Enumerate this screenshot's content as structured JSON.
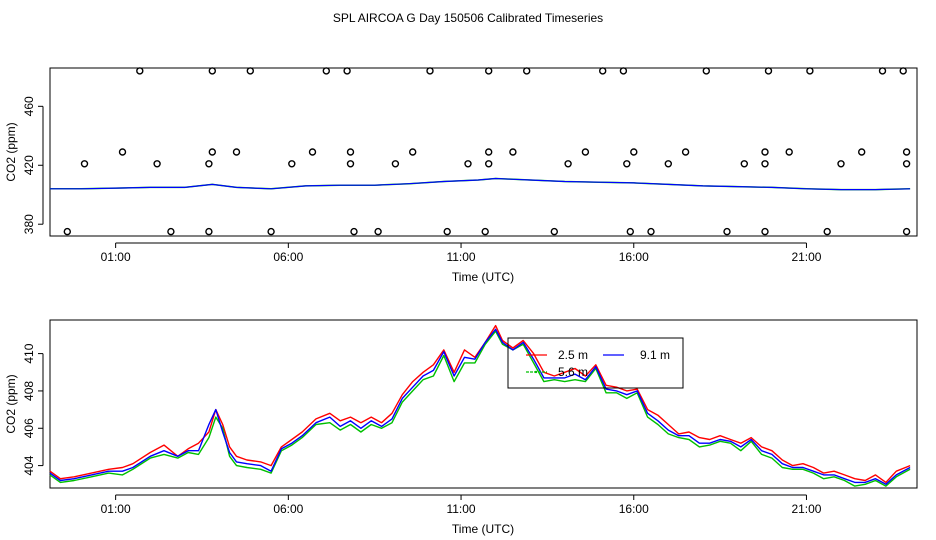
{
  "title": "SPL AIRCOA G  Day 150506  Calibrated Timeseries",
  "colors": {
    "red": "#ff0000",
    "green": "#00c000",
    "blue": "#0000ff",
    "black": "#000000"
  },
  "chart_data": [
    {
      "type": "scatter",
      "xlabel": "Time (UTC)",
      "ylabel": "CO2 (ppm)",
      "xlim": [
        -0.9,
        24.2
      ],
      "ylim": [
        372,
        486
      ],
      "xticks": [
        1,
        6,
        11,
        16,
        21
      ],
      "xtick_labels": [
        "01:00",
        "06:00",
        "11:00",
        "16:00",
        "21:00"
      ],
      "yticks": [
        380,
        420,
        460
      ],
      "ytick_labels": [
        "380",
        "420",
        "460"
      ],
      "points": [
        {
          "x": 1.2,
          "y": 429
        },
        {
          "x": 3.8,
          "y": 429
        },
        {
          "x": 4.5,
          "y": 429
        },
        {
          "x": 6.7,
          "y": 429
        },
        {
          "x": 7.8,
          "y": 429
        },
        {
          "x": 9.6,
          "y": 429
        },
        {
          "x": 11.8,
          "y": 429
        },
        {
          "x": 12.5,
          "y": 429
        },
        {
          "x": 14.6,
          "y": 429
        },
        {
          "x": 16.0,
          "y": 429
        },
        {
          "x": 17.5,
          "y": 429
        },
        {
          "x": 19.8,
          "y": 429
        },
        {
          "x": 20.5,
          "y": 429
        },
        {
          "x": 22.6,
          "y": 429
        },
        {
          "x": 23.9,
          "y": 429
        },
        {
          "x": 1.7,
          "y": 484
        },
        {
          "x": 3.8,
          "y": 484
        },
        {
          "x": 4.9,
          "y": 484
        },
        {
          "x": 7.1,
          "y": 484
        },
        {
          "x": 7.7,
          "y": 484
        },
        {
          "x": 10.1,
          "y": 484
        },
        {
          "x": 11.8,
          "y": 484
        },
        {
          "x": 12.9,
          "y": 484
        },
        {
          "x": 15.1,
          "y": 484
        },
        {
          "x": 15.7,
          "y": 484
        },
        {
          "x": 18.1,
          "y": 484
        },
        {
          "x": 19.9,
          "y": 484
        },
        {
          "x": 21.1,
          "y": 484
        },
        {
          "x": 23.2,
          "y": 484
        },
        {
          "x": 23.8,
          "y": 484
        },
        {
          "x": 0.1,
          "y": 421
        },
        {
          "x": 2.2,
          "y": 421
        },
        {
          "x": 3.7,
          "y": 421
        },
        {
          "x": 6.1,
          "y": 421
        },
        {
          "x": 7.8,
          "y": 421
        },
        {
          "x": 9.1,
          "y": 421
        },
        {
          "x": 11.2,
          "y": 421
        },
        {
          "x": 11.8,
          "y": 421
        },
        {
          "x": 14.1,
          "y": 421
        },
        {
          "x": 15.8,
          "y": 421
        },
        {
          "x": 17.0,
          "y": 421
        },
        {
          "x": 19.2,
          "y": 421
        },
        {
          "x": 19.8,
          "y": 421
        },
        {
          "x": 22.0,
          "y": 421
        },
        {
          "x": 23.9,
          "y": 421
        },
        {
          "x": -0.4,
          "y": 375
        },
        {
          "x": 2.6,
          "y": 375
        },
        {
          "x": 3.7,
          "y": 375
        },
        {
          "x": 5.5,
          "y": 375
        },
        {
          "x": 7.9,
          "y": 375
        },
        {
          "x": 8.6,
          "y": 375
        },
        {
          "x": 10.6,
          "y": 375
        },
        {
          "x": 11.7,
          "y": 375
        },
        {
          "x": 13.7,
          "y": 375
        },
        {
          "x": 15.9,
          "y": 375
        },
        {
          "x": 16.5,
          "y": 375
        },
        {
          "x": 18.7,
          "y": 375
        },
        {
          "x": 19.8,
          "y": 375
        },
        {
          "x": 21.6,
          "y": 375
        },
        {
          "x": 23.9,
          "y": 375
        }
      ],
      "line": {
        "x": [
          -0.9,
          0,
          1,
          2,
          3,
          3.8,
          4.5,
          5.5,
          6.5,
          7.5,
          8.5,
          9.5,
          10.5,
          11.5,
          12,
          13,
          14,
          15,
          16,
          17,
          18,
          19,
          20,
          21,
          22,
          23,
          24
        ],
        "y": [
          404,
          404,
          404.5,
          405,
          405,
          407,
          405,
          404,
          406,
          406.5,
          406.5,
          407.5,
          409,
          410,
          411,
          410,
          409,
          408.5,
          408,
          407,
          406,
          405.5,
          405,
          404,
          403.5,
          403.5,
          404
        ]
      }
    },
    {
      "type": "line",
      "xlabel": "Time (UTC)",
      "ylabel": "CO2 (ppm)",
      "xlim": [
        -0.9,
        24.2
      ],
      "ylim": [
        402.8,
        411.8
      ],
      "xticks": [
        1,
        6,
        11,
        16,
        21
      ],
      "xtick_labels": [
        "01:00",
        "06:00",
        "11:00",
        "16:00",
        "21:00"
      ],
      "yticks": [
        404,
        406,
        408,
        410
      ],
      "ytick_labels": [
        "404",
        "406",
        "408",
        "410"
      ],
      "legend": [
        "2.5 m",
        "5.6 m",
        "9.1 m"
      ],
      "series": [
        {
          "name": "2.5 m",
          "x": [
            -0.9,
            -0.6,
            -0.2,
            0.3,
            0.8,
            1.2,
            1.5,
            2.0,
            2.4,
            2.8,
            3.1,
            3.4,
            3.7,
            3.9,
            4.1,
            4.3,
            4.5,
            4.8,
            5.2,
            5.5,
            5.8,
            6.1,
            6.4,
            6.8,
            7.2,
            7.5,
            7.8,
            8.1,
            8.4,
            8.7,
            9.0,
            9.3,
            9.6,
            9.9,
            10.2,
            10.5,
            10.8,
            11.1,
            11.4,
            11.7,
            12.0,
            12.2,
            12.5,
            12.8,
            13.1,
            13.4,
            13.7,
            14.0,
            14.3,
            14.6,
            14.9,
            15.2,
            15.5,
            15.8,
            16.1,
            16.4,
            16.7,
            17.0,
            17.3,
            17.6,
            17.9,
            18.2,
            18.5,
            18.8,
            19.1,
            19.4,
            19.7,
            20.0,
            20.3,
            20.6,
            20.9,
            21.2,
            21.5,
            21.8,
            22.1,
            22.4,
            22.7,
            23.0,
            23.3,
            23.6,
            24.0
          ],
          "y": [
            403.7,
            403.3,
            403.4,
            403.6,
            403.8,
            403.9,
            404.1,
            404.7,
            405.1,
            404.5,
            404.9,
            405.2,
            405.8,
            407.0,
            406.2,
            405.0,
            404.5,
            404.3,
            404.2,
            404.0,
            405.0,
            405.4,
            405.8,
            406.5,
            406.8,
            406.4,
            406.6,
            406.3,
            406.6,
            406.3,
            406.8,
            407.8,
            408.5,
            409.0,
            409.4,
            410.2,
            409.0,
            410.2,
            409.8,
            410.6,
            411.5,
            410.7,
            410.3,
            410.7,
            410.0,
            409.0,
            408.8,
            409.0,
            409.2,
            408.8,
            409.4,
            408.3,
            408.2,
            408.0,
            408.1,
            407.0,
            406.7,
            406.2,
            405.7,
            405.8,
            405.5,
            405.4,
            405.6,
            405.4,
            405.2,
            405.5,
            405.0,
            404.8,
            404.3,
            404.0,
            404.1,
            403.9,
            403.6,
            403.7,
            403.5,
            403.3,
            403.2,
            403.5,
            403.1,
            403.7,
            404.0
          ]
        },
        {
          "name": "5.6 m",
          "x": [
            -0.9,
            -0.6,
            -0.2,
            0.3,
            0.8,
            1.2,
            1.5,
            2.0,
            2.4,
            2.8,
            3.1,
            3.4,
            3.7,
            3.9,
            4.1,
            4.3,
            4.5,
            4.8,
            5.2,
            5.5,
            5.8,
            6.1,
            6.4,
            6.8,
            7.2,
            7.5,
            7.8,
            8.1,
            8.4,
            8.7,
            9.0,
            9.3,
            9.6,
            9.9,
            10.2,
            10.5,
            10.8,
            11.1,
            11.4,
            11.7,
            12.0,
            12.2,
            12.5,
            12.8,
            13.1,
            13.4,
            13.7,
            14.0,
            14.3,
            14.6,
            14.9,
            15.2,
            15.5,
            15.8,
            16.1,
            16.4,
            16.7,
            17.0,
            17.3,
            17.6,
            17.9,
            18.2,
            18.5,
            18.8,
            19.1,
            19.4,
            19.7,
            20.0,
            20.3,
            20.6,
            20.9,
            21.2,
            21.5,
            21.8,
            22.1,
            22.4,
            22.7,
            23.0,
            23.3,
            23.6,
            24.0
          ],
          "y": [
            403.5,
            403.1,
            403.2,
            403.4,
            403.6,
            403.5,
            403.8,
            404.4,
            404.6,
            404.4,
            404.7,
            404.6,
            405.5,
            406.6,
            406.0,
            404.5,
            404.0,
            403.9,
            403.8,
            403.6,
            404.8,
            405.1,
            405.5,
            406.2,
            406.3,
            405.9,
            406.2,
            405.8,
            406.2,
            406.0,
            406.3,
            407.4,
            408.0,
            408.6,
            408.8,
            409.9,
            408.5,
            409.5,
            409.5,
            410.5,
            411.2,
            410.5,
            410.2,
            410.5,
            409.5,
            408.5,
            408.6,
            408.5,
            408.6,
            408.5,
            409.2,
            407.9,
            407.9,
            407.6,
            407.9,
            406.6,
            406.2,
            405.7,
            405.5,
            405.4,
            405.0,
            405.1,
            405.3,
            405.2,
            404.8,
            405.3,
            404.6,
            404.4,
            403.9,
            403.8,
            403.8,
            403.6,
            403.3,
            403.4,
            403.2,
            402.9,
            403.0,
            403.2,
            402.9,
            403.4,
            403.8
          ]
        },
        {
          "name": "9.1 m",
          "x": [
            -0.9,
            -0.6,
            -0.2,
            0.3,
            0.8,
            1.2,
            1.5,
            2.0,
            2.4,
            2.8,
            3.1,
            3.4,
            3.7,
            3.9,
            4.1,
            4.3,
            4.5,
            4.8,
            5.2,
            5.5,
            5.8,
            6.1,
            6.4,
            6.8,
            7.2,
            7.5,
            7.8,
            8.1,
            8.4,
            8.7,
            9.0,
            9.3,
            9.6,
            9.9,
            10.2,
            10.5,
            10.8,
            11.1,
            11.4,
            11.7,
            12.0,
            12.2,
            12.5,
            12.8,
            13.1,
            13.4,
            13.7,
            14.0,
            14.3,
            14.6,
            14.9,
            15.2,
            15.5,
            15.8,
            16.1,
            16.4,
            16.7,
            17.0,
            17.3,
            17.6,
            17.9,
            18.2,
            18.5,
            18.8,
            19.1,
            19.4,
            19.7,
            20.0,
            20.3,
            20.6,
            20.9,
            21.2,
            21.5,
            21.8,
            22.1,
            22.4,
            22.7,
            23.0,
            23.3,
            23.6,
            24.0
          ],
          "y": [
            403.6,
            403.2,
            403.3,
            403.5,
            403.7,
            403.7,
            403.9,
            404.5,
            404.8,
            404.5,
            404.8,
            404.8,
            406.2,
            407.0,
            405.8,
            404.7,
            404.2,
            404.1,
            404.0,
            403.7,
            404.9,
            405.2,
            405.6,
            406.3,
            406.6,
            406.1,
            406.4,
            406.0,
            406.4,
            406.1,
            406.5,
            407.6,
            408.2,
            408.8,
            409.1,
            410.1,
            408.8,
            409.8,
            409.7,
            410.6,
            411.3,
            410.6,
            410.2,
            410.6,
            409.7,
            408.7,
            408.7,
            408.7,
            408.9,
            408.6,
            409.3,
            408.1,
            408.0,
            407.8,
            408.0,
            406.8,
            406.4,
            405.9,
            405.6,
            405.6,
            405.2,
            405.2,
            405.4,
            405.3,
            405.0,
            405.4,
            404.8,
            404.6,
            404.1,
            403.9,
            403.9,
            403.7,
            403.5,
            403.5,
            403.3,
            403.1,
            403.1,
            403.3,
            403.0,
            403.5,
            403.9
          ]
        }
      ]
    }
  ]
}
